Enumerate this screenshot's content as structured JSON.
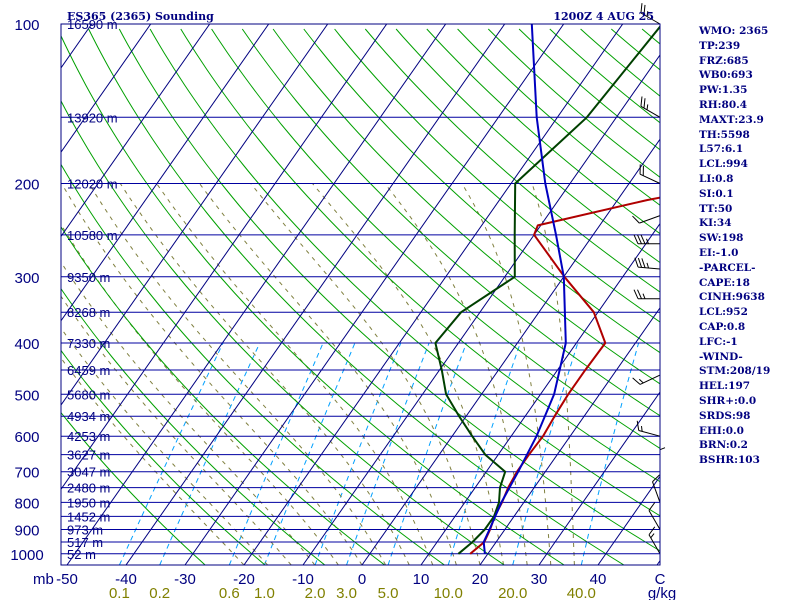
{
  "header": {
    "station": "ES365 (2365) Sounding",
    "time": "1200Z  4 AUG 25"
  },
  "indices": [
    "WMO: 2365",
    "TP:239",
    "FRZ:685",
    "WB0:693",
    "PW:1.35",
    "RH:80.4",
    "MAXT:23.9",
    "TH:5598",
    "L57:6.1",
    "LCL:994",
    "LI:0.8",
    "SI:0.1",
    "TT:50",
    "KI:34",
    "SW:198",
    "EI:-1.0",
    "-PARCEL-",
    "CAPE:18",
    "CINH:9638",
    "LCL:952",
    "CAP:0.8",
    "LFC:-1",
    "-WIND-",
    "STM:208/19",
    "HEL:197",
    "SHR+:0.0",
    "SRDS:98",
    "EHI:0.0",
    "BRN:0.2",
    "BSHR:103"
  ],
  "colors": {
    "frame": "#000080",
    "isobar": "#0000a0",
    "isotherm": "#000080",
    "dry_adiabat": "#00a000",
    "moist_adiabat": "#808040",
    "mixing_ratio": "#00a0ff",
    "temperature": "#b00000",
    "dewpoint": "#004000",
    "parcel": "#0000c0",
    "wind": "#000000"
  },
  "chart_data": {
    "type": "skew-T log-P sounding",
    "title": "ES365 (2365) Sounding",
    "valid": "1200Z  4 AUG 25",
    "pressure_axis": {
      "ylim_hPa": [
        1050,
        100
      ],
      "log_scale": true,
      "tick_labels": [
        "100",
        "200",
        "300",
        "400",
        "500",
        "600",
        "700",
        "800",
        "900",
        "1000"
      ],
      "ticks": [
        100,
        200,
        300,
        400,
        500,
        600,
        700,
        800,
        900,
        1000
      ],
      "unit_label": "mb"
    },
    "temperature_axis": {
      "xlim_C": [
        -50,
        50
      ],
      "tick_labels": [
        "-50",
        "-40",
        "-30",
        "-20",
        "-10",
        "0",
        "10",
        "20",
        "30",
        "40",
        "C"
      ],
      "ticks": [
        -50,
        -40,
        -30,
        -20,
        -10,
        0,
        10,
        20,
        30,
        40
      ]
    },
    "mixing_ratio_axis": {
      "labels": [
        "0.1",
        "0.2",
        "0.6",
        "1.0",
        "2.0",
        "3.0",
        "5.0",
        "10.0",
        "20.0",
        "40.0"
      ],
      "values": [
        0.1,
        0.2,
        0.6,
        1.0,
        2.0,
        3.0,
        5.0,
        10.0,
        20.0,
        40.0
      ],
      "unit": "g/kg"
    },
    "height_levels": [
      {
        "p": 100,
        "label": "16590 m"
      },
      {
        "p": 150,
        "label": "13920 m"
      },
      {
        "p": 200,
        "label": "12020 m"
      },
      {
        "p": 250,
        "label": "10580 m"
      },
      {
        "p": 300,
        "label": "9350 m"
      },
      {
        "p": 350,
        "label": "8268 m"
      },
      {
        "p": 400,
        "label": "7330 m"
      },
      {
        "p": 450,
        "label": "6459 m"
      },
      {
        "p": 500,
        "label": "5680 m"
      },
      {
        "p": 550,
        "label": "4934 m"
      },
      {
        "p": 600,
        "label": "4253 m"
      },
      {
        "p": 650,
        "label": "3627 m"
      },
      {
        "p": 700,
        "label": "3047 m"
      },
      {
        "p": 750,
        "label": "2480 m"
      },
      {
        "p": 800,
        "label": "1950 m"
      },
      {
        "p": 850,
        "label": "1452 m"
      },
      {
        "p": 900,
        "label": "973 m"
      },
      {
        "p": 950,
        "label": "517 m"
      },
      {
        "p": 1000,
        "label": "52 m"
      }
    ],
    "series": [
      {
        "key": "temperature",
        "points": [
          {
            "p": 1000,
            "t": 17.0
          },
          {
            "p": 950,
            "t": 18.0
          },
          {
            "p": 900,
            "t": 17.5
          },
          {
            "p": 850,
            "t": 16.7
          },
          {
            "p": 800,
            "t": 16.3
          },
          {
            "p": 750,
            "t": 15.6
          },
          {
            "p": 700,
            "t": 15.2
          },
          {
            "p": 650,
            "t": 15.2
          },
          {
            "p": 600,
            "t": 15.4
          },
          {
            "p": 550,
            "t": 15.0
          },
          {
            "p": 500,
            "t": 14.7
          },
          {
            "p": 450,
            "t": 14.7
          },
          {
            "p": 400,
            "t": 14.9
          },
          {
            "p": 350,
            "t": 9.3
          },
          {
            "p": 300,
            "t": 0.1
          },
          {
            "p": 250,
            "t": -10.0
          },
          {
            "p": 240,
            "t": -10.5
          },
          {
            "p": 215,
            "t": 5.0
          },
          {
            "p": 200,
            "t": 18.0
          },
          {
            "p": 150,
            "t": 22.3
          },
          {
            "p": 100,
            "t": 24.4
          }
        ]
      },
      {
        "key": "dewpoint",
        "points": [
          {
            "p": 1000,
            "t": 15.0
          },
          {
            "p": 950,
            "t": 16.0
          },
          {
            "p": 900,
            "t": 16.6
          },
          {
            "p": 850,
            "t": 16.6
          },
          {
            "p": 800,
            "t": 15.8
          },
          {
            "p": 750,
            "t": 14.2
          },
          {
            "p": 700,
            "t": 13.2
          },
          {
            "p": 650,
            "t": 7.8
          },
          {
            "p": 600,
            "t": 3.4
          },
          {
            "p": 550,
            "t": -1.2
          },
          {
            "p": 500,
            "t": -6.0
          },
          {
            "p": 450,
            "t": -9.6
          },
          {
            "p": 400,
            "t": -13.9
          },
          {
            "p": 350,
            "t": -13.2
          },
          {
            "p": 300,
            "t": -8.3
          },
          {
            "p": 250,
            "t": -13.3
          },
          {
            "p": 200,
            "t": -19.3
          },
          {
            "p": 150,
            "t": -15.0
          },
          {
            "p": 100,
            "t": -13.3
          }
        ]
      },
      {
        "key": "parcel",
        "points": [
          {
            "p": 1000,
            "t": 19.5
          },
          {
            "p": 950,
            "t": 17.9
          },
          {
            "p": 900,
            "t": 17.4
          },
          {
            "p": 850,
            "t": 16.8
          },
          {
            "p": 800,
            "t": 16.2
          },
          {
            "p": 700,
            "t": 15.4
          },
          {
            "p": 600,
            "t": 14.3
          },
          {
            "p": 500,
            "t": 12.3
          },
          {
            "p": 400,
            "t": 8.2
          },
          {
            "p": 300,
            "t": 0.0
          },
          {
            "p": 250,
            "t": -6.3
          },
          {
            "p": 200,
            "t": -14.2
          },
          {
            "p": 150,
            "t": -23.5
          },
          {
            "p": 100,
            "t": -35.4
          }
        ]
      }
    ],
    "wind_profile": [
      {
        "p": 100,
        "dir": 300,
        "spd": 25
      },
      {
        "p": 150,
        "dir": 300,
        "spd": 25
      },
      {
        "p": 200,
        "dir": 295,
        "spd": 20
      },
      {
        "p": 230,
        "dir": 250,
        "spd": 10
      },
      {
        "p": 260,
        "dir": 270,
        "spd": 35
      },
      {
        "p": 290,
        "dir": 275,
        "spd": 35
      },
      {
        "p": 330,
        "dir": 270,
        "spd": 25
      },
      {
        "p": 460,
        "dir": 245,
        "spd": 15
      },
      {
        "p": 600,
        "dir": 285,
        "spd": 15
      },
      {
        "p": 700,
        "dir": 360,
        "spd": 5
      },
      {
        "p": 800,
        "dir": 340,
        "spd": 10
      },
      {
        "p": 900,
        "dir": 330,
        "spd": 10
      },
      {
        "p": 1000,
        "dir": 330,
        "spd": 15
      }
    ]
  }
}
